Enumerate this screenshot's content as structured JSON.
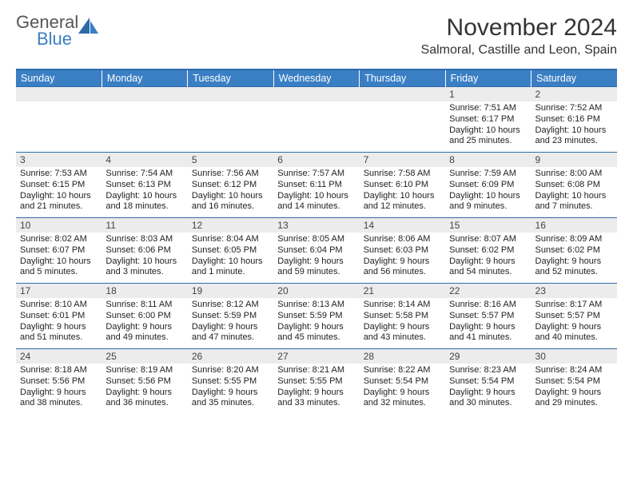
{
  "logo": {
    "word1": "General",
    "word2": "Blue"
  },
  "title": "November 2024",
  "location": "Salmoral, Castille and Leon, Spain",
  "colors": {
    "header_bg": "#3a7fc4",
    "header_text": "#ffffff",
    "daynum_bg": "#ececec",
    "rule": "#2e6aa8",
    "body_text": "#222222",
    "logo_gray": "#555555",
    "logo_blue": "#3a7fc4",
    "page_bg": "#ffffff"
  },
  "weekdays": [
    "Sunday",
    "Monday",
    "Tuesday",
    "Wednesday",
    "Thursday",
    "Friday",
    "Saturday"
  ],
  "weeks": [
    [
      {
        "n": "",
        "sunrise": "",
        "sunset": "",
        "daylight": ""
      },
      {
        "n": "",
        "sunrise": "",
        "sunset": "",
        "daylight": ""
      },
      {
        "n": "",
        "sunrise": "",
        "sunset": "",
        "daylight": ""
      },
      {
        "n": "",
        "sunrise": "",
        "sunset": "",
        "daylight": ""
      },
      {
        "n": "",
        "sunrise": "",
        "sunset": "",
        "daylight": ""
      },
      {
        "n": "1",
        "sunrise": "Sunrise: 7:51 AM",
        "sunset": "Sunset: 6:17 PM",
        "daylight": "Daylight: 10 hours and 25 minutes."
      },
      {
        "n": "2",
        "sunrise": "Sunrise: 7:52 AM",
        "sunset": "Sunset: 6:16 PM",
        "daylight": "Daylight: 10 hours and 23 minutes."
      }
    ],
    [
      {
        "n": "3",
        "sunrise": "Sunrise: 7:53 AM",
        "sunset": "Sunset: 6:15 PM",
        "daylight": "Daylight: 10 hours and 21 minutes."
      },
      {
        "n": "4",
        "sunrise": "Sunrise: 7:54 AM",
        "sunset": "Sunset: 6:13 PM",
        "daylight": "Daylight: 10 hours and 18 minutes."
      },
      {
        "n": "5",
        "sunrise": "Sunrise: 7:56 AM",
        "sunset": "Sunset: 6:12 PM",
        "daylight": "Daylight: 10 hours and 16 minutes."
      },
      {
        "n": "6",
        "sunrise": "Sunrise: 7:57 AM",
        "sunset": "Sunset: 6:11 PM",
        "daylight": "Daylight: 10 hours and 14 minutes."
      },
      {
        "n": "7",
        "sunrise": "Sunrise: 7:58 AM",
        "sunset": "Sunset: 6:10 PM",
        "daylight": "Daylight: 10 hours and 12 minutes."
      },
      {
        "n": "8",
        "sunrise": "Sunrise: 7:59 AM",
        "sunset": "Sunset: 6:09 PM",
        "daylight": "Daylight: 10 hours and 9 minutes."
      },
      {
        "n": "9",
        "sunrise": "Sunrise: 8:00 AM",
        "sunset": "Sunset: 6:08 PM",
        "daylight": "Daylight: 10 hours and 7 minutes."
      }
    ],
    [
      {
        "n": "10",
        "sunrise": "Sunrise: 8:02 AM",
        "sunset": "Sunset: 6:07 PM",
        "daylight": "Daylight: 10 hours and 5 minutes."
      },
      {
        "n": "11",
        "sunrise": "Sunrise: 8:03 AM",
        "sunset": "Sunset: 6:06 PM",
        "daylight": "Daylight: 10 hours and 3 minutes."
      },
      {
        "n": "12",
        "sunrise": "Sunrise: 8:04 AM",
        "sunset": "Sunset: 6:05 PM",
        "daylight": "Daylight: 10 hours and 1 minute."
      },
      {
        "n": "13",
        "sunrise": "Sunrise: 8:05 AM",
        "sunset": "Sunset: 6:04 PM",
        "daylight": "Daylight: 9 hours and 59 minutes."
      },
      {
        "n": "14",
        "sunrise": "Sunrise: 8:06 AM",
        "sunset": "Sunset: 6:03 PM",
        "daylight": "Daylight: 9 hours and 56 minutes."
      },
      {
        "n": "15",
        "sunrise": "Sunrise: 8:07 AM",
        "sunset": "Sunset: 6:02 PM",
        "daylight": "Daylight: 9 hours and 54 minutes."
      },
      {
        "n": "16",
        "sunrise": "Sunrise: 8:09 AM",
        "sunset": "Sunset: 6:02 PM",
        "daylight": "Daylight: 9 hours and 52 minutes."
      }
    ],
    [
      {
        "n": "17",
        "sunrise": "Sunrise: 8:10 AM",
        "sunset": "Sunset: 6:01 PM",
        "daylight": "Daylight: 9 hours and 51 minutes."
      },
      {
        "n": "18",
        "sunrise": "Sunrise: 8:11 AM",
        "sunset": "Sunset: 6:00 PM",
        "daylight": "Daylight: 9 hours and 49 minutes."
      },
      {
        "n": "19",
        "sunrise": "Sunrise: 8:12 AM",
        "sunset": "Sunset: 5:59 PM",
        "daylight": "Daylight: 9 hours and 47 minutes."
      },
      {
        "n": "20",
        "sunrise": "Sunrise: 8:13 AM",
        "sunset": "Sunset: 5:59 PM",
        "daylight": "Daylight: 9 hours and 45 minutes."
      },
      {
        "n": "21",
        "sunrise": "Sunrise: 8:14 AM",
        "sunset": "Sunset: 5:58 PM",
        "daylight": "Daylight: 9 hours and 43 minutes."
      },
      {
        "n": "22",
        "sunrise": "Sunrise: 8:16 AM",
        "sunset": "Sunset: 5:57 PM",
        "daylight": "Daylight: 9 hours and 41 minutes."
      },
      {
        "n": "23",
        "sunrise": "Sunrise: 8:17 AM",
        "sunset": "Sunset: 5:57 PM",
        "daylight": "Daylight: 9 hours and 40 minutes."
      }
    ],
    [
      {
        "n": "24",
        "sunrise": "Sunrise: 8:18 AM",
        "sunset": "Sunset: 5:56 PM",
        "daylight": "Daylight: 9 hours and 38 minutes."
      },
      {
        "n": "25",
        "sunrise": "Sunrise: 8:19 AM",
        "sunset": "Sunset: 5:56 PM",
        "daylight": "Daylight: 9 hours and 36 minutes."
      },
      {
        "n": "26",
        "sunrise": "Sunrise: 8:20 AM",
        "sunset": "Sunset: 5:55 PM",
        "daylight": "Daylight: 9 hours and 35 minutes."
      },
      {
        "n": "27",
        "sunrise": "Sunrise: 8:21 AM",
        "sunset": "Sunset: 5:55 PM",
        "daylight": "Daylight: 9 hours and 33 minutes."
      },
      {
        "n": "28",
        "sunrise": "Sunrise: 8:22 AM",
        "sunset": "Sunset: 5:54 PM",
        "daylight": "Daylight: 9 hours and 32 minutes."
      },
      {
        "n": "29",
        "sunrise": "Sunrise: 8:23 AM",
        "sunset": "Sunset: 5:54 PM",
        "daylight": "Daylight: 9 hours and 30 minutes."
      },
      {
        "n": "30",
        "sunrise": "Sunrise: 8:24 AM",
        "sunset": "Sunset: 5:54 PM",
        "daylight": "Daylight: 9 hours and 29 minutes."
      }
    ]
  ]
}
